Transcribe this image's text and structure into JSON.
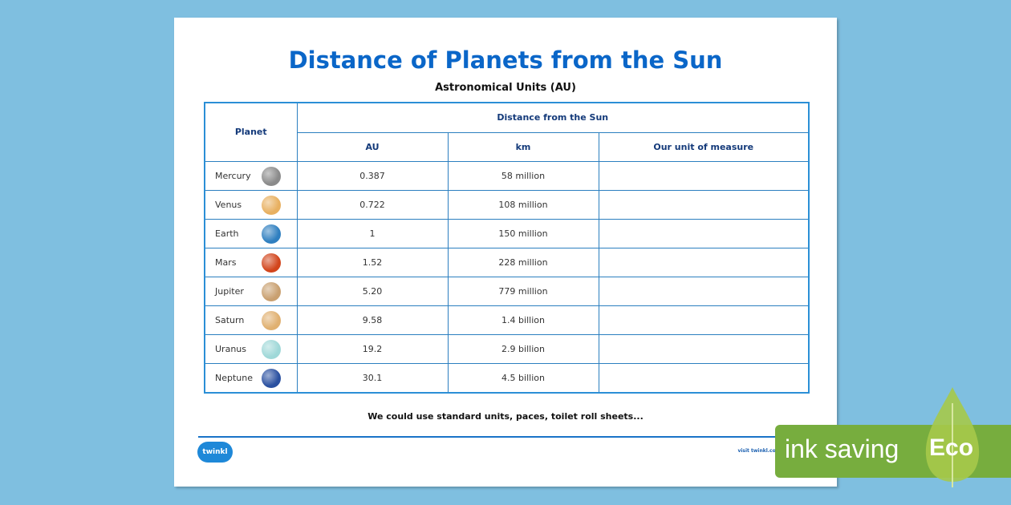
{
  "title": "Distance of Planets from the Sun",
  "subtitle": "Astronomical Units (AU)",
  "table": {
    "planet_header": "Planet",
    "group_header": "Distance from the Sun",
    "columns": [
      "AU",
      "km",
      "Our unit of measure"
    ],
    "rows": [
      {
        "planet": "Mercury",
        "au": "0.387",
        "km": "58 million",
        "our": "",
        "color": "#8a8a8a"
      },
      {
        "planet": "Venus",
        "au": "0.722",
        "km": "108 million",
        "our": "",
        "color": "#e8b060"
      },
      {
        "planet": "Earth",
        "au": "1",
        "km": "150 million",
        "our": "",
        "color": "#2f7fc0"
      },
      {
        "planet": "Mars",
        "au": "1.52",
        "km": "228 million",
        "our": "",
        "color": "#d2451c"
      },
      {
        "planet": "Jupiter",
        "au": "5.20",
        "km": "779 million",
        "our": "",
        "color": "#c9a070"
      },
      {
        "planet": "Saturn",
        "au": "9.58",
        "km": "1.4 billion",
        "our": "",
        "color": "#e0b070"
      },
      {
        "planet": "Uranus",
        "au": "19.2",
        "km": "2.9 billion",
        "our": "",
        "color": "#9fd8d8"
      },
      {
        "planet": "Neptune",
        "au": "30.1",
        "km": "4.5 billion",
        "our": "",
        "color": "#2a50a0"
      }
    ]
  },
  "note": "We could use standard units, paces, toilet roll sheets...",
  "footer": {
    "logo": "twinkl",
    "visit": "visit twinkl.com"
  },
  "badge": {
    "text": "ink saving",
    "eco": "Eco",
    "color": "#77ad3e"
  }
}
